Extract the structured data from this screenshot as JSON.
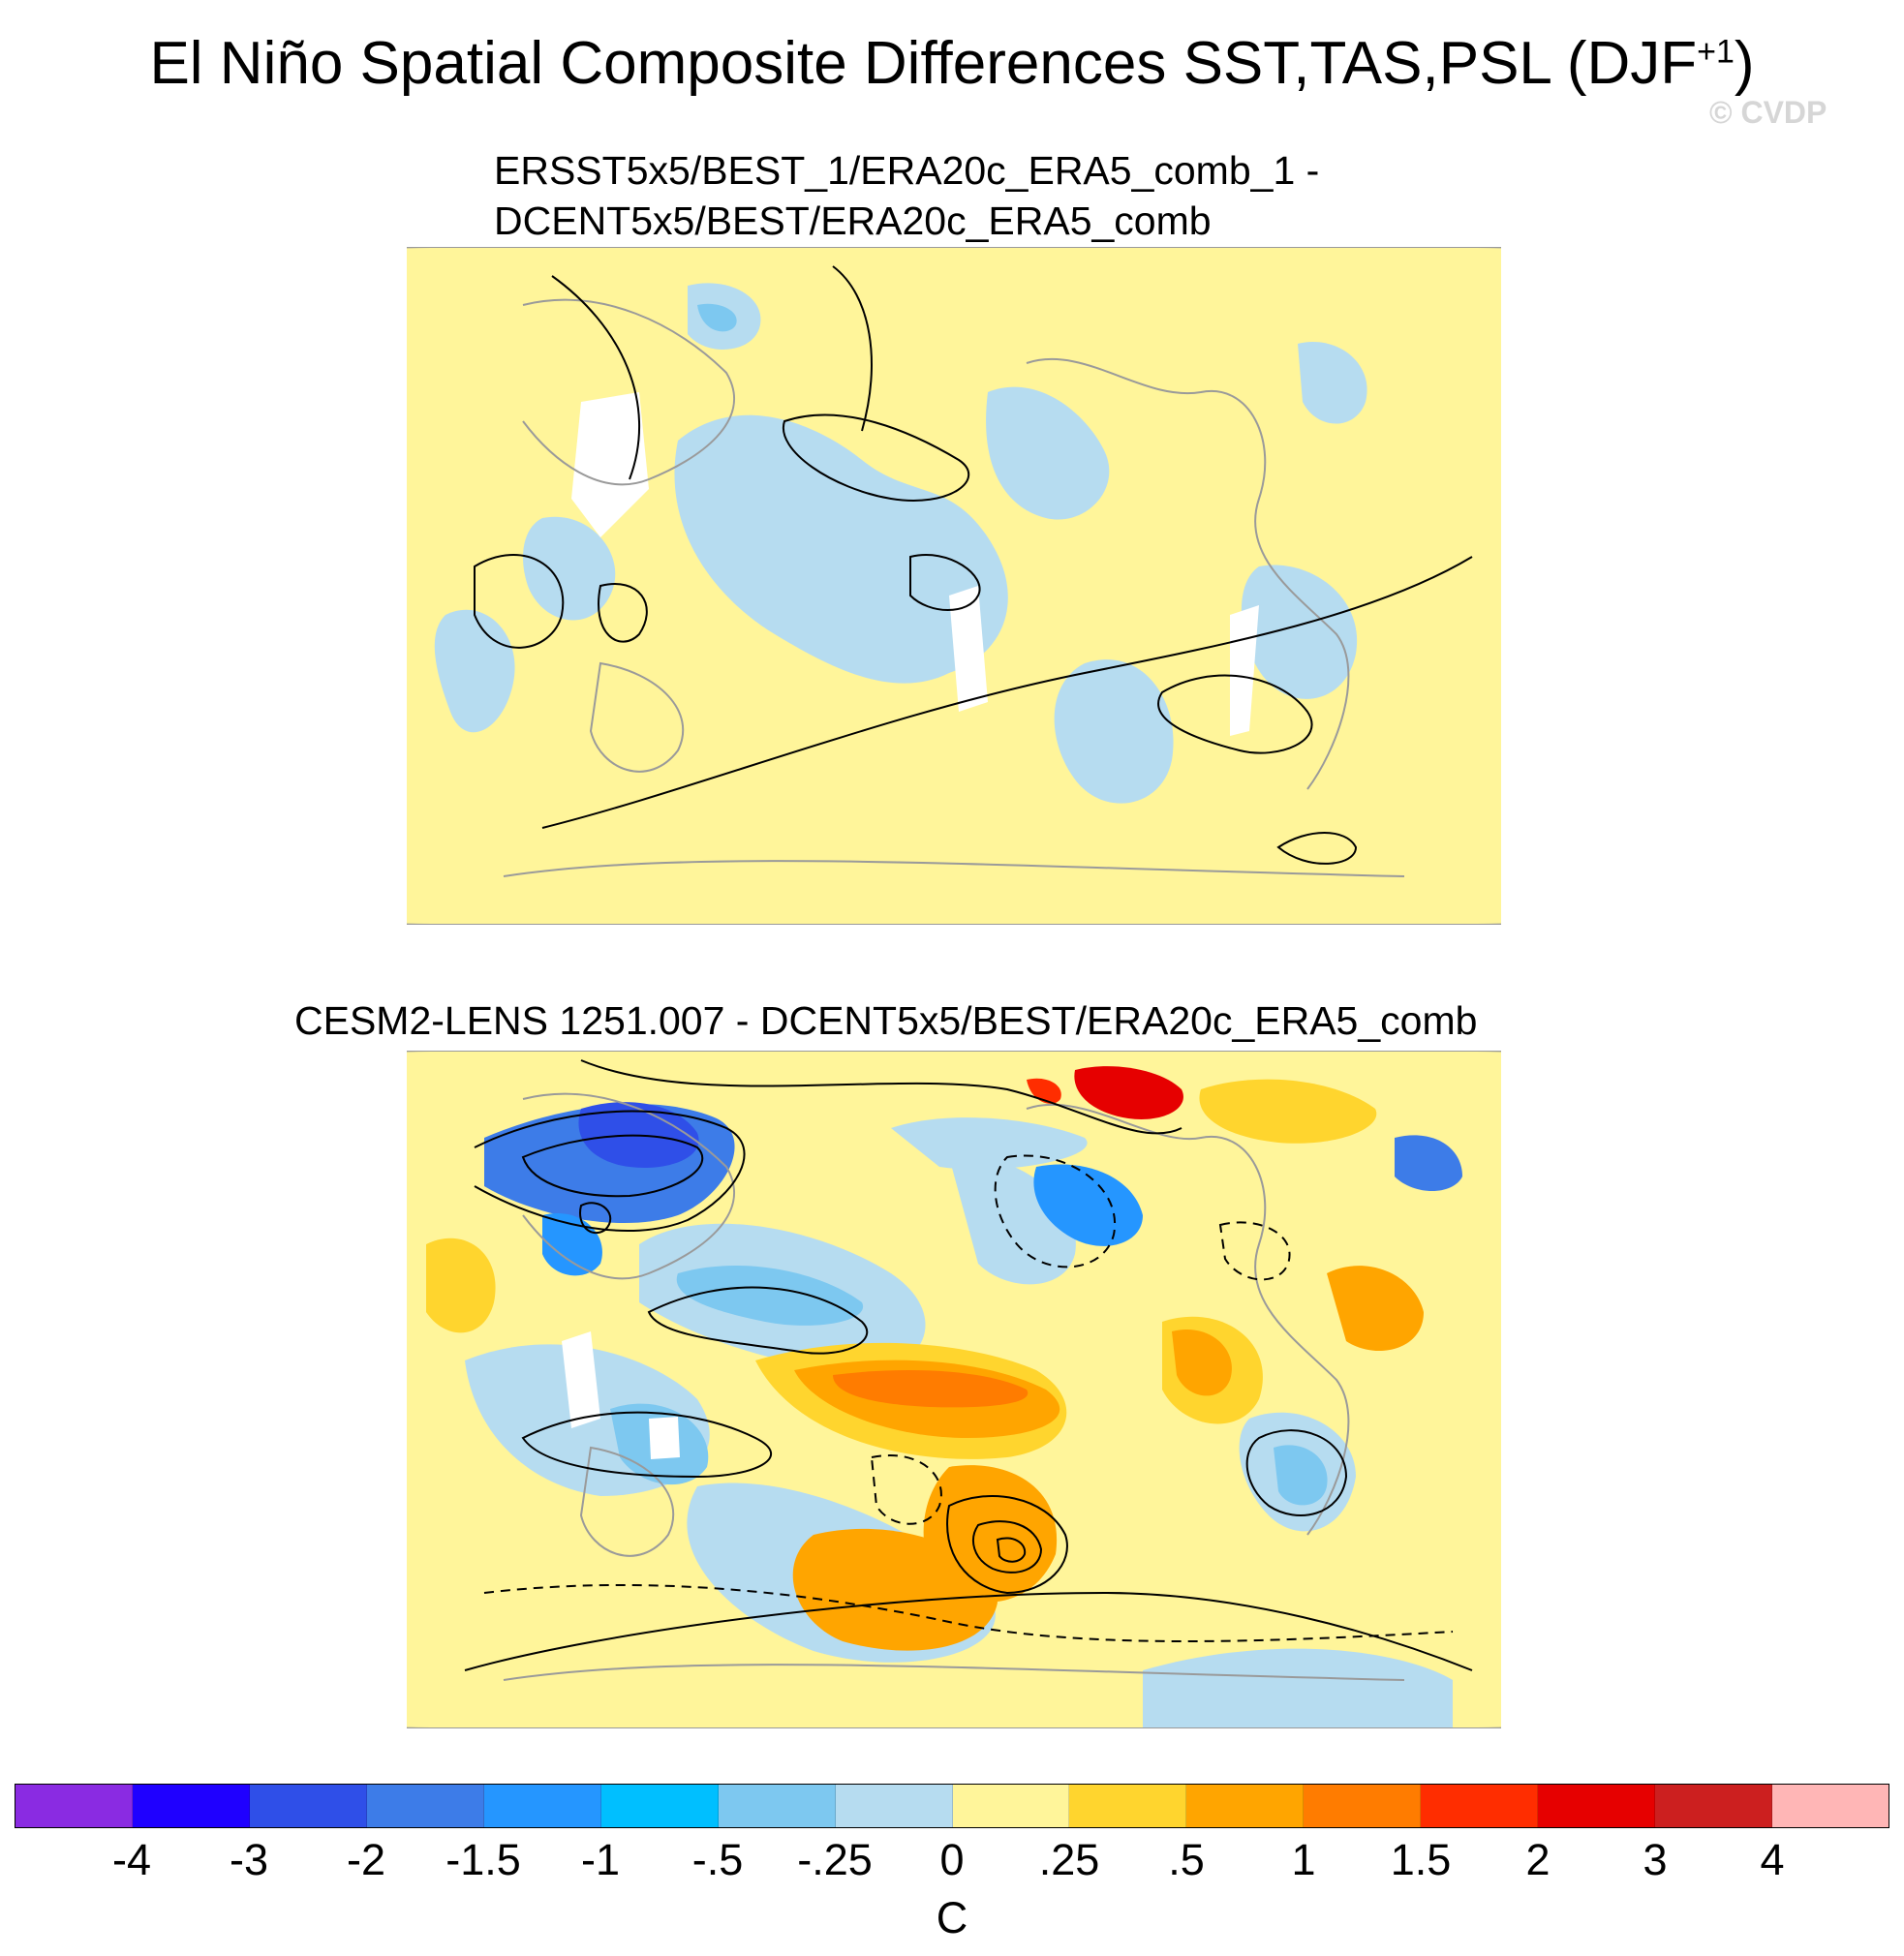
{
  "figure": {
    "title_main": "El Niño Spatial Composite Differences SST,TAS,PSL (DJF",
    "title_sup": "+1",
    "title_close": ")",
    "watermark": "© CVDP"
  },
  "panels": [
    {
      "title_line1": "ERSST5x5/BEST_1/ERA20c_ERA5_comb_1 -",
      "title_line2": "DCENT5x5/BEST/ERA20c_ERA5_comb"
    },
    {
      "title_line1": "CESM2-LENS 1251.007 - DCENT5x5/BEST/ERA20c_ERA5_comb"
    }
  ],
  "colorbar": {
    "units": "C",
    "labels": [
      "-4",
      "-3",
      "-2",
      "-1.5",
      "-1",
      "-.5",
      "-.25",
      "0",
      ".25",
      ".5",
      "1",
      "1.5",
      "2",
      "3",
      "4"
    ],
    "colors": [
      "#8a2be2",
      "#1f00ff",
      "#2f4fe8",
      "#3d7ce8",
      "#2596ff",
      "#00bfff",
      "#7dc8f0",
      "#b6dcf0",
      "#fff59a",
      "#ffd52e",
      "#ffa500",
      "#ff7c00",
      "#ff2d00",
      "#e60000",
      "#cc1f1f",
      "#ffb6b6"
    ]
  },
  "colors": {
    "ocean_line": "#9a9a9a",
    "contour": "#000000",
    "light_yellow": "#fff59a",
    "light_blue": "#b6dcf0"
  }
}
